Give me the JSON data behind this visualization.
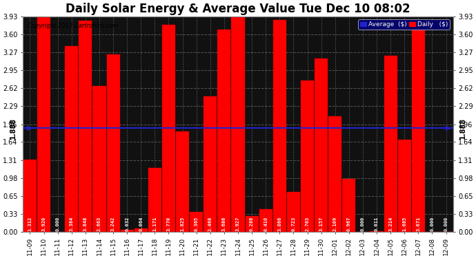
{
  "title": "Daily Solar Energy & Average Value Tue Dec 10 08:02",
  "copyright": "Copyright 2013 Cartronics.com",
  "categories": [
    "11-09",
    "11-10",
    "11-11",
    "11-12",
    "11-13",
    "11-14",
    "11-15",
    "11-16",
    "11-17",
    "11-18",
    "11-19",
    "11-20",
    "11-21",
    "11-22",
    "11-23",
    "11-24",
    "11-25",
    "11-26",
    "11-27",
    "11-28",
    "11-29",
    "11-30",
    "12-01",
    "12-02",
    "12-03",
    "12-04",
    "12-05",
    "12-06",
    "12-07",
    "12-08",
    "12-09"
  ],
  "values": [
    1.312,
    3.92,
    0.0,
    3.384,
    3.848,
    2.663,
    3.242,
    0.032,
    0.064,
    1.171,
    3.77,
    1.825,
    0.365,
    2.468,
    3.686,
    3.927,
    0.288,
    0.41,
    3.866,
    0.723,
    2.763,
    3.157,
    2.109,
    0.967,
    0.0,
    0.011,
    3.214,
    1.685,
    3.671,
    0.0,
    0.0
  ],
  "average_line": 1.888,
  "bar_color": "#ff0000",
  "bar_edge_color": "#cc0000",
  "average_line_color": "#2222cc",
  "background_color": "#ffffff",
  "plot_bg_color": "#111111",
  "ylim": [
    0.0,
    3.93
  ],
  "yticks": [
    0.0,
    0.33,
    0.65,
    0.98,
    1.31,
    1.64,
    1.96,
    2.29,
    2.62,
    2.95,
    3.27,
    3.6,
    3.93
  ],
  "grid_color": "#555555",
  "title_fontsize": 12,
  "avg_label": "1.888",
  "legend_avg_color": "#2222cc",
  "legend_daily_color": "#ff0000",
  "legend_avg_label": "Average  ($)",
  "legend_daily_label": "Daily   ($)"
}
